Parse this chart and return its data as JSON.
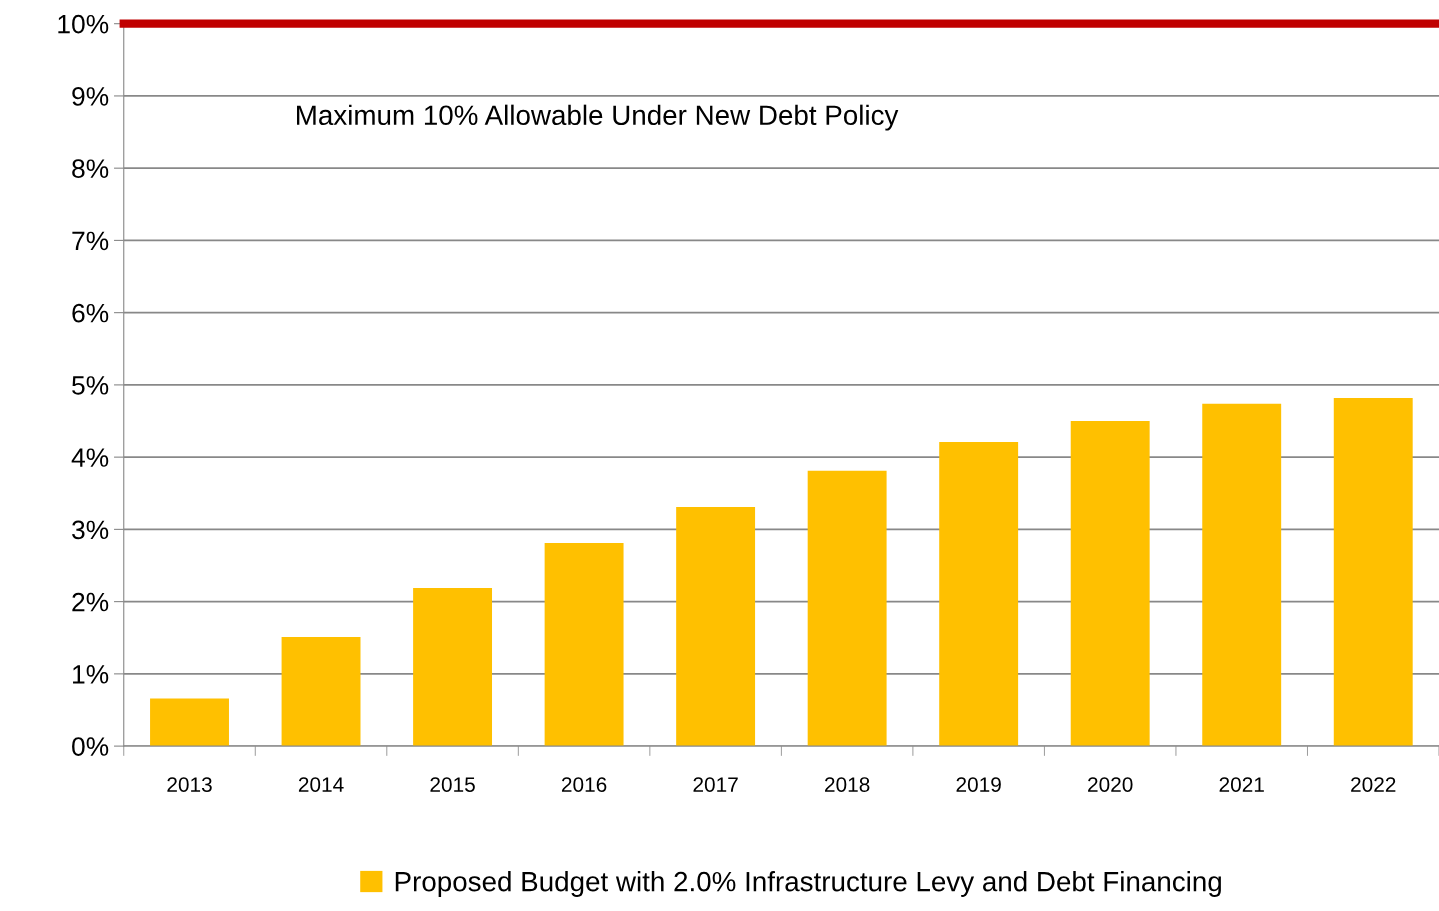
{
  "chart_data": {
    "type": "bar",
    "categories": [
      "2013",
      "2014",
      "2015",
      "2016",
      "2017",
      "2018",
      "2019",
      "2020",
      "2021",
      "2022"
    ],
    "series": [
      {
        "name": "Proposed Budget with 2.0% Infrastructure Levy and Debt Financing",
        "color": "#ffc000",
        "values": [
          0.66,
          1.51,
          2.19,
          2.81,
          3.31,
          3.81,
          4.21,
          4.5,
          4.74,
          4.82
        ]
      }
    ],
    "ylim": [
      0,
      10
    ],
    "yticks": [
      {
        "value": 0,
        "label": "0%"
      },
      {
        "value": 1,
        "label": "1%"
      },
      {
        "value": 2,
        "label": "2%"
      },
      {
        "value": 3,
        "label": "3%"
      },
      {
        "value": 4,
        "label": "4%"
      },
      {
        "value": 5,
        "label": "5%"
      },
      {
        "value": 6,
        "label": "6%"
      },
      {
        "value": 7,
        "label": "7%"
      },
      {
        "value": 8,
        "label": "8%"
      },
      {
        "value": 9,
        "label": "9%"
      },
      {
        "value": 10,
        "label": "10%"
      }
    ],
    "ref_lines": [
      {
        "axis": "y",
        "value": 10,
        "label": "Maximum 10% Allowable Under New Debt Policy",
        "color": "#c00000"
      }
    ],
    "grid": "y",
    "legend": "bottom"
  }
}
